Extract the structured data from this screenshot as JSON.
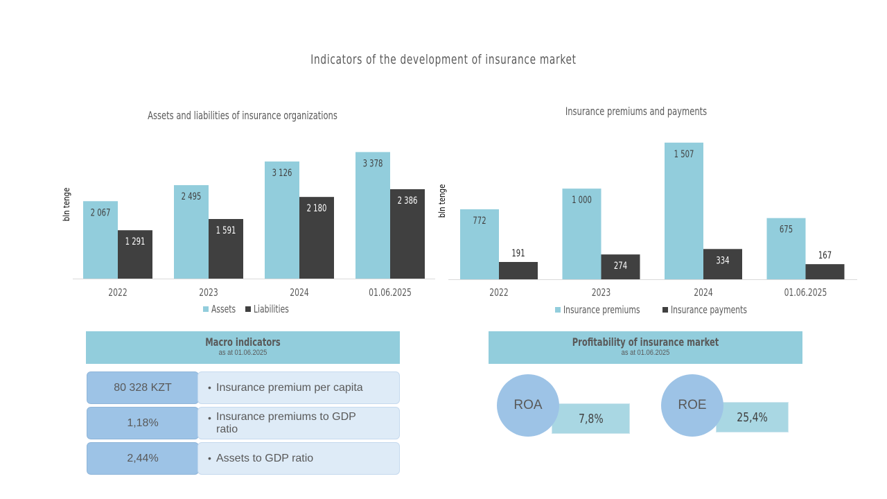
{
  "title": "Indicators of the development of insurance market",
  "colors": {
    "light": "#92cddc",
    "dark": "#404040",
    "header": "#92cddc",
    "circle": "#9dc3e6"
  },
  "chart_data": [
    {
      "type": "bar",
      "title": "Assets and liabilities of insurance organizations",
      "ylabel": "bln tenge",
      "categories": [
        "2022",
        "2023",
        "2024",
        "01.06.2025"
      ],
      "ylim": [
        0,
        3700
      ],
      "legend_position": "bottom",
      "series": [
        {
          "name": "Assets",
          "values": [
            2067,
            2495,
            3126,
            3378
          ],
          "labels": [
            "2 067",
            "2 495",
            "3 126",
            "3 378"
          ]
        },
        {
          "name": "Liabilities",
          "values": [
            1291,
            1591,
            2180,
            2386
          ],
          "labels": [
            "1 291",
            "1 591",
            "2 180",
            "2 386"
          ]
        }
      ]
    },
    {
      "type": "bar",
      "title": "Insurance premiums and payments",
      "ylabel": "bln tenge",
      "categories": [
        "2022",
        "2023",
        "2024",
        "01.06.2025"
      ],
      "ylim": [
        0,
        1620
      ],
      "legend_position": "bottom",
      "series": [
        {
          "name": "Insurance premiums",
          "values": [
            772,
            1000,
            1507,
            675
          ],
          "labels": [
            "772",
            "1 000",
            "1 507",
            "675"
          ]
        },
        {
          "name": "Insurance payments",
          "values": [
            191,
            274,
            334,
            167
          ],
          "labels": [
            "191",
            "274",
            "334",
            "167"
          ]
        }
      ]
    }
  ],
  "macro": {
    "title": "Macro indicators",
    "subtitle": "as at 01.06.2025",
    "rows": [
      {
        "value": "80 328 KZT",
        "label": "Insurance  premium per capita"
      },
      {
        "value": "1,18%",
        "label": "Insurance  premiums to GDP ratio"
      },
      {
        "value": "2,44%",
        "label": "Assets to GDP ratio"
      }
    ]
  },
  "profitability": {
    "title": "Profitability  of insurance  market",
    "subtitle": "as at 01.06.2025",
    "items": [
      {
        "name": "ROA",
        "value": "7,8%"
      },
      {
        "name": "ROE",
        "value": "25,4%"
      }
    ]
  }
}
